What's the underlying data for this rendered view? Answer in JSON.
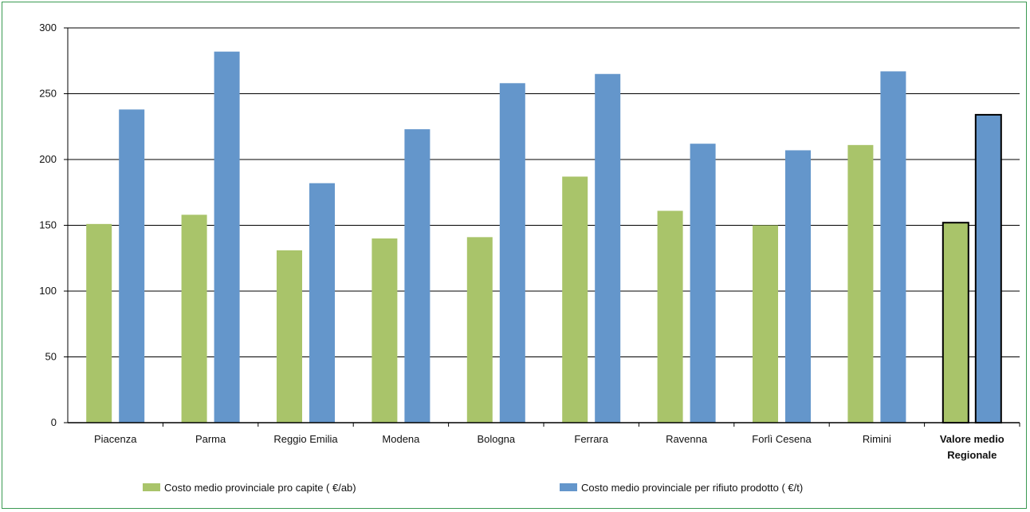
{
  "chart_data": {
    "type": "bar",
    "categories": [
      [
        "Piacenza"
      ],
      [
        "Parma"
      ],
      [
        "Reggio Emilia"
      ],
      [
        "Modena"
      ],
      [
        "Bologna"
      ],
      [
        "Ferrara"
      ],
      [
        "Ravenna"
      ],
      [
        "Forlì Cesena"
      ],
      [
        "Rimini"
      ],
      [
        "Valore medio",
        "Regionale"
      ]
    ],
    "highlight_last_category": true,
    "series": [
      {
        "name": "Costo medio provinciale pro capite ( €/ab)",
        "color": "#a9c46a",
        "values": [
          151,
          158,
          131,
          140,
          141,
          187,
          161,
          150,
          211,
          152
        ]
      },
      {
        "name": "Costo medio provinciale per rifiuto prodotto ( €/t)",
        "color": "#6496cb",
        "values": [
          238,
          282,
          182,
          223,
          258,
          265,
          212,
          207,
          267,
          234
        ]
      }
    ],
    "yticks": [
      0,
      50,
      100,
      150,
      200,
      250,
      300
    ],
    "ylim": [
      0,
      300
    ],
    "grid": true,
    "legend_position": "bottom",
    "title": "",
    "xlabel": "",
    "ylabel": ""
  }
}
